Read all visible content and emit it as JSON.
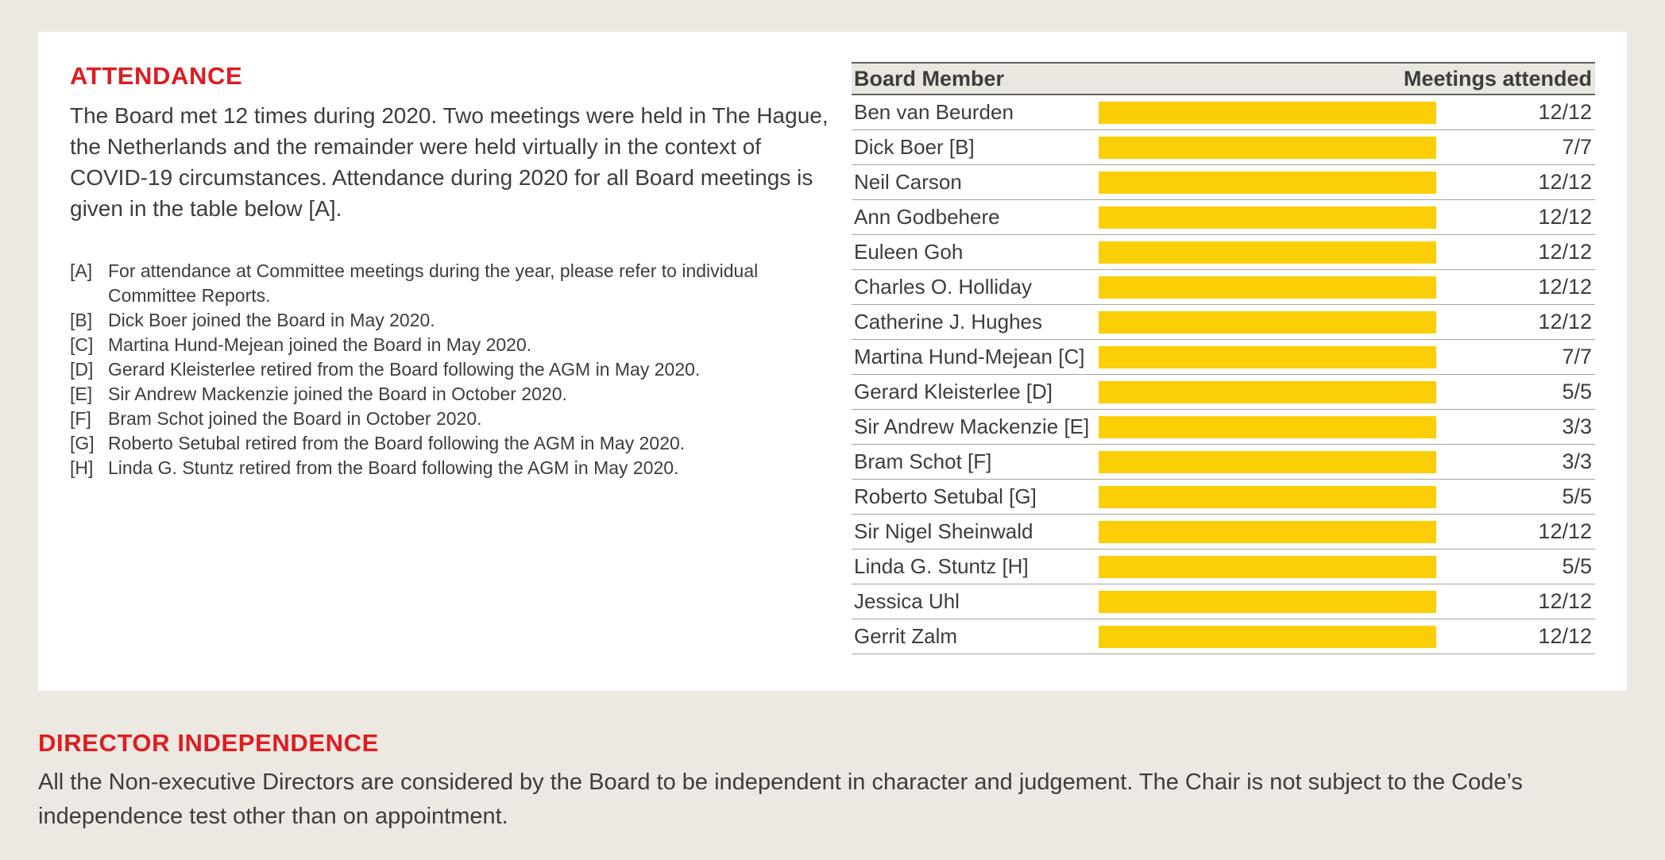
{
  "colors": {
    "accent_red": "#DD1D21",
    "bar_yellow": "#FBCE07",
    "text": "#3E3D3B",
    "page_background": "#ECE8E2",
    "card_background": "#FFFFFF",
    "table_header_background": "#EAE7E1"
  },
  "attendance": {
    "heading": "ATTENDANCE",
    "intro": "The Board met 12 times during 2020. Two meetings were held in The Hague, the Netherlands and the remainder were held virtually in the context of COVID-19 circumstances. Attendance during 2020 for all Board meetings is given in the table below [A].",
    "footnotes": [
      {
        "ref": "[A]",
        "text": "For attendance at Committee meetings during the year, please refer to individual Committee Reports."
      },
      {
        "ref": "[B]",
        "text": "Dick Boer joined the Board in May 2020."
      },
      {
        "ref": "[C]",
        "text": "Martina Hund-Mejean joined the Board in May 2020."
      },
      {
        "ref": "[D]",
        "text": "Gerard Kleisterlee retired from the Board following the AGM in May 2020."
      },
      {
        "ref": "[E]",
        "text": "Sir Andrew Mackenzie joined the Board in October 2020."
      },
      {
        "ref": "[F]",
        "text": "Bram Schot joined the Board in October 2020."
      },
      {
        "ref": "[G]",
        "text": "Roberto Setubal retired from the Board following the AGM in May 2020."
      },
      {
        "ref": "[H]",
        "text": "Linda G. Stuntz retired from the Board following the AGM in May 2020."
      }
    ]
  },
  "table": {
    "columns": {
      "member": "Board Member",
      "attended": "Meetings attended"
    },
    "rows": [
      {
        "name": "Ben van Beurden",
        "attended": "12/12",
        "ratio": 1
      },
      {
        "name": "Dick Boer [B]",
        "attended": "7/7",
        "ratio": 1
      },
      {
        "name": "Neil Carson",
        "attended": "12/12",
        "ratio": 1
      },
      {
        "name": "Ann Godbehere",
        "attended": "12/12",
        "ratio": 1
      },
      {
        "name": "Euleen Goh",
        "attended": "12/12",
        "ratio": 1
      },
      {
        "name": "Charles O. Holliday",
        "attended": "12/12",
        "ratio": 1
      },
      {
        "name": "Catherine J. Hughes",
        "attended": "12/12",
        "ratio": 1
      },
      {
        "name": "Martina Hund-Mejean [C]",
        "attended": "7/7",
        "ratio": 1
      },
      {
        "name": "Gerard Kleisterlee [D]",
        "attended": "5/5",
        "ratio": 1
      },
      {
        "name": "Sir Andrew Mackenzie [E]",
        "attended": "3/3",
        "ratio": 1
      },
      {
        "name": "Bram Schot [F]",
        "attended": "3/3",
        "ratio": 1
      },
      {
        "name": "Roberto Setubal [G]",
        "attended": "5/5",
        "ratio": 1
      },
      {
        "name": "Sir Nigel Sheinwald",
        "attended": "12/12",
        "ratio": 1
      },
      {
        "name": "Linda G. Stuntz [H]",
        "attended": "5/5",
        "ratio": 1
      },
      {
        "name": "Jessica Uhl",
        "attended": "12/12",
        "ratio": 1
      },
      {
        "name": "Gerrit Zalm",
        "attended": "12/12",
        "ratio": 1
      }
    ]
  },
  "chart_data": {
    "type": "bar",
    "orientation": "horizontal",
    "categories": [
      "Ben van Beurden",
      "Dick Boer [B]",
      "Neil Carson",
      "Ann Godbehere",
      "Euleen Goh",
      "Charles O. Holliday",
      "Catherine J. Hughes",
      "Martina Hund-Mejean [C]",
      "Gerard Kleisterlee [D]",
      "Sir Andrew Mackenzie [E]",
      "Bram Schot [F]",
      "Roberto Setubal [G]",
      "Sir Nigel Sheinwald",
      "Linda G. Stuntz [H]",
      "Jessica Uhl",
      "Gerrit Zalm"
    ],
    "data_labels": [
      "12/12",
      "7/7",
      "12/12",
      "12/12",
      "12/12",
      "12/12",
      "12/12",
      "7/7",
      "5/5",
      "3/3",
      "3/3",
      "5/5",
      "12/12",
      "5/5",
      "12/12",
      "12/12"
    ],
    "series": [
      {
        "name": "Meetings attended (proportion of eligible meetings)",
        "values": [
          1,
          1,
          1,
          1,
          1,
          1,
          1,
          1,
          1,
          1,
          1,
          1,
          1,
          1,
          1,
          1
        ]
      }
    ],
    "xlabel": "Meetings attended",
    "ylabel": "Board Member",
    "bar_color": "#FBCE07",
    "grid": false,
    "legend": false
  },
  "independence": {
    "heading": "DIRECTOR INDEPENDENCE",
    "body": "All the Non-executive Directors are considered by the Board to be independent in character and judgement. The Chair is not subject to the Code’s independence test other than on appointment."
  }
}
